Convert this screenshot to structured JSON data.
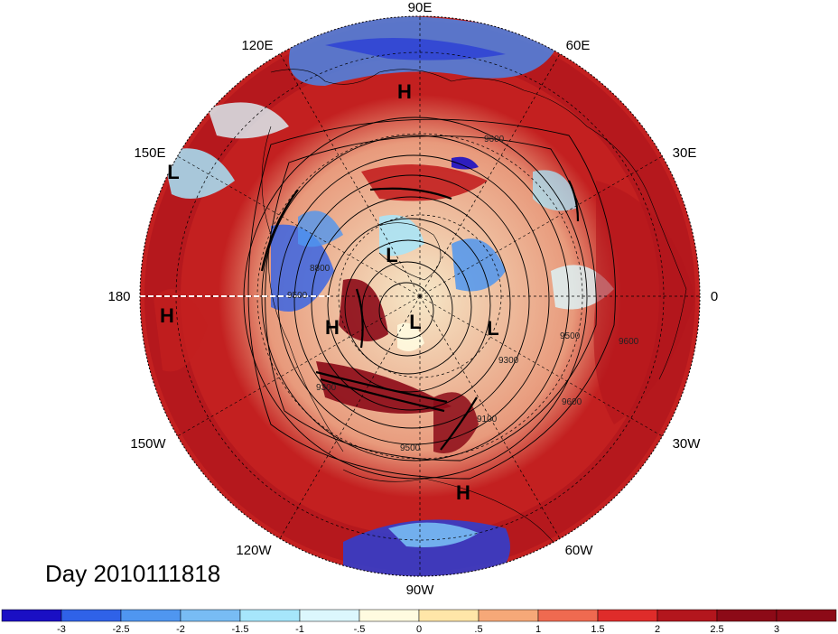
{
  "map": {
    "projection": "north-polar-stereographic",
    "longitude_labels": [
      {
        "text": "90E",
        "lon": 90
      },
      {
        "text": "60E",
        "lon": 60
      },
      {
        "text": "30E",
        "lon": 30
      },
      {
        "text": "0",
        "lon": 0
      },
      {
        "text": "30W",
        "lon": -30
      },
      {
        "text": "60W",
        "lon": -60
      },
      {
        "text": "90W",
        "lon": -90
      },
      {
        "text": "120W",
        "lon": -120
      },
      {
        "text": "150W",
        "lon": -150
      },
      {
        "text": "180",
        "lon": 180
      },
      {
        "text": "150E",
        "lon": 150
      },
      {
        "text": "120E",
        "lon": 120
      }
    ],
    "pressure_centers": [
      "H",
      "L",
      "H",
      "L",
      "H",
      "L",
      "L",
      "H"
    ],
    "contour_labels": [
      "9600",
      "9500",
      "9300",
      "9600",
      "9500",
      "9600",
      "8800",
      "9300",
      "9500",
      "9100"
    ]
  },
  "day_label": "Day 2010111818",
  "colorbar": {
    "colors": [
      "#1a0fc4",
      "#2f62e8",
      "#4f96f0",
      "#78bcf4",
      "#a6e6fb",
      "#dcf7fd",
      "#fffbe0",
      "#ffe6a8",
      "#f6a878",
      "#ef6a50",
      "#df2c2a",
      "#b3161d",
      "#8c0a17"
    ],
    "tick_labels": [
      "-3",
      "-2.5",
      "-2",
      "-1.5",
      "-1",
      "-.5",
      "0",
      ".5",
      "1",
      "1.5",
      "2",
      "2.5",
      "3"
    ]
  }
}
